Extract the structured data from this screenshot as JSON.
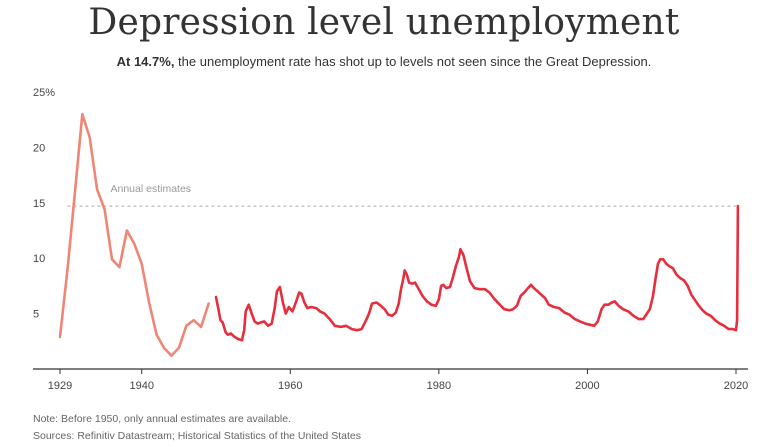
{
  "header": {
    "title": "Depression level unemployment",
    "subtitle_bold": "At 14.7%,",
    "subtitle_rest": " the unemployment rate has shot up to levels not seen since the Great Depression."
  },
  "footer": {
    "note": "Note: Before 1950, only annual estimates are available.",
    "sources": "Sources: Refinitiv Datastream; Historical Statistics of the United States"
  },
  "colors": {
    "annual": "#f08575",
    "monthly": "#e62e3d",
    "reference": "#aaaaaa",
    "axis": "#333333"
  },
  "chart_data": {
    "type": "line",
    "title": "Depression level unemployment",
    "xlim": [
      1929,
      2020
    ],
    "ylim": [
      0,
      25
    ],
    "x_ticks": [
      1929,
      1940,
      1960,
      1980,
      2000,
      2020
    ],
    "y_ticks": [
      {
        "value": 5,
        "label": "5"
      },
      {
        "value": 10,
        "label": "10"
      },
      {
        "value": 15,
        "label": "15"
      },
      {
        "value": 20,
        "label": "20"
      },
      {
        "value": 25,
        "label": "25%"
      }
    ],
    "reference_line": {
      "value": 14.7,
      "label": "Annual estimates"
    },
    "series": [
      {
        "key": "annual",
        "x": [
          1929,
          1930,
          1931,
          1932,
          1933,
          1934,
          1935,
          1936,
          1937,
          1938,
          1939,
          1940,
          1941,
          1942,
          1943,
          1944,
          1945,
          1946,
          1947,
          1948,
          1949
        ],
        "values": [
          2.9,
          8.9,
          15.9,
          23.0,
          20.9,
          16.2,
          14.4,
          9.9,
          9.2,
          12.5,
          11.3,
          9.5,
          6.0,
          3.1,
          1.9,
          1.2,
          1.9,
          3.9,
          4.4,
          3.8,
          5.9
        ]
      },
      {
        "key": "monthly",
        "x": [
          1950.0,
          1950.3,
          1950.6,
          1950.9,
          1951.3,
          1951.6,
          1952.0,
          1952.5,
          1953.0,
          1953.5,
          1953.8,
          1954.0,
          1954.4,
          1954.8,
          1955.2,
          1955.6,
          1956.0,
          1956.5,
          1957.0,
          1957.5,
          1957.9,
          1958.2,
          1958.6,
          1959.0,
          1959.4,
          1959.8,
          1960.3,
          1960.8,
          1961.2,
          1961.5,
          1961.9,
          1962.3,
          1962.8,
          1963.5,
          1964.0,
          1964.6,
          1965.3,
          1966.0,
          1966.8,
          1967.5,
          1968.3,
          1969.0,
          1969.6,
          1970.2,
          1970.6,
          1971.0,
          1971.6,
          1972.2,
          1972.7,
          1973.2,
          1973.7,
          1974.2,
          1974.6,
          1974.9,
          1975.2,
          1975.4,
          1975.7,
          1976.0,
          1976.4,
          1976.8,
          1977.3,
          1977.8,
          1978.4,
          1979.0,
          1979.6,
          1980.0,
          1980.3,
          1980.6,
          1981.0,
          1981.5,
          1981.9,
          1982.3,
          1982.7,
          1982.9,
          1983.3,
          1983.7,
          1984.2,
          1984.8,
          1985.5,
          1986.2,
          1986.8,
          1987.5,
          1988.2,
          1988.8,
          1989.5,
          1990.0,
          1990.5,
          1991.0,
          1991.5,
          1992.0,
          1992.4,
          1992.8,
          1993.3,
          1993.8,
          1994.3,
          1994.8,
          1995.5,
          1996.2,
          1996.9,
          1997.6,
          1998.3,
          1999.0,
          1999.7,
          2000.3,
          2000.9,
          2001.4,
          2001.9,
          2002.3,
          2002.8,
          2003.3,
          2003.7,
          2004.2,
          2004.8,
          2005.5,
          2006.2,
          2006.9,
          2007.5,
          2008.0,
          2008.4,
          2008.8,
          2009.2,
          2009.5,
          2009.8,
          2010.2,
          2010.6,
          2011.0,
          2011.5,
          2012.0,
          2012.5,
          2013.0,
          2013.5,
          2014.0,
          2014.5,
          2015.0,
          2015.5,
          2016.0,
          2016.6,
          2017.2,
          2017.8,
          2018.4,
          2019.0,
          2019.6,
          2020.0,
          2020.15,
          2020.25
        ],
        "values": [
          6.5,
          5.5,
          4.4,
          4.2,
          3.3,
          3.1,
          3.2,
          2.9,
          2.7,
          2.6,
          3.5,
          5.2,
          5.8,
          5.0,
          4.3,
          4.1,
          4.2,
          4.3,
          3.9,
          4.1,
          5.5,
          7.0,
          7.4,
          6.0,
          5.0,
          5.6,
          5.2,
          6.1,
          6.9,
          6.8,
          6.0,
          5.5,
          5.6,
          5.5,
          5.2,
          5.0,
          4.5,
          3.9,
          3.8,
          3.9,
          3.6,
          3.5,
          3.6,
          4.4,
          5.0,
          5.9,
          6.0,
          5.7,
          5.4,
          4.9,
          4.8,
          5.1,
          5.9,
          7.2,
          8.1,
          8.9,
          8.5,
          7.8,
          7.7,
          7.8,
          7.2,
          6.6,
          6.1,
          5.8,
          5.7,
          6.3,
          7.5,
          7.6,
          7.3,
          7.4,
          8.3,
          9.3,
          10.1,
          10.8,
          10.3,
          9.2,
          7.9,
          7.3,
          7.2,
          7.2,
          6.9,
          6.3,
          5.8,
          5.4,
          5.3,
          5.4,
          5.7,
          6.6,
          6.9,
          7.3,
          7.6,
          7.3,
          7.0,
          6.7,
          6.4,
          5.8,
          5.6,
          5.5,
          5.1,
          4.9,
          4.5,
          4.3,
          4.1,
          4.0,
          3.9,
          4.3,
          5.4,
          5.8,
          5.8,
          6.0,
          6.1,
          5.7,
          5.4,
          5.2,
          4.8,
          4.5,
          4.5,
          5.0,
          5.4,
          6.5,
          8.3,
          9.5,
          9.9,
          9.9,
          9.5,
          9.3,
          9.1,
          8.5,
          8.2,
          8.0,
          7.5,
          6.7,
          6.2,
          5.7,
          5.3,
          5.0,
          4.8,
          4.4,
          4.1,
          3.9,
          3.6,
          3.6,
          3.5,
          4.4,
          14.7
        ]
      }
    ]
  }
}
